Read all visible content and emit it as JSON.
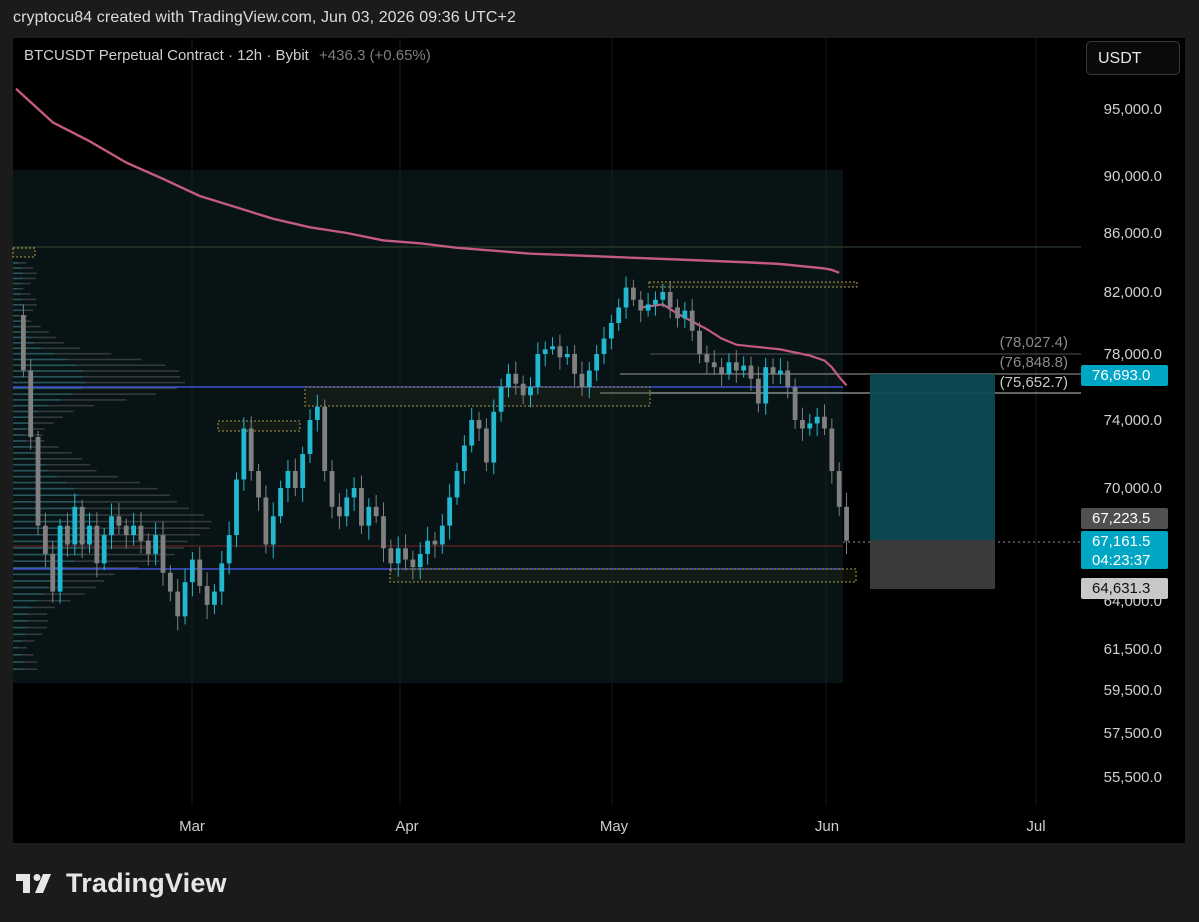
{
  "header": {
    "attribution": "cryptocu84 created with TradingView.com, Jun 03, 2026 09:36 UTC+2"
  },
  "legend": {
    "symbol": "BTCUSDT Perpetual Contract · 12h · Bybit",
    "change": "+436.3 (+0.65%)"
  },
  "currency_button": "USDT",
  "branding": {
    "logo_text": "TradingView"
  },
  "colors": {
    "background": "#000000",
    "up": "#22b8cf",
    "down": "#808080",
    "ma": "#c45a82",
    "accent": "#00a7c4",
    "blue_line": "#4b5cff"
  },
  "chart_data": {
    "type": "candlestick",
    "price_axis": {
      "ticks": [
        "95,000.0",
        "90,000.0",
        "86,000.0",
        "82,000.0",
        "78,000.0",
        "74,000.0",
        "70,000.0",
        "64,000.0",
        "61,500.0",
        "59,500.0",
        "57,500.0",
        "55,500.0"
      ]
    },
    "time_axis": {
      "ticks": [
        "Mar",
        "Apr",
        "May",
        "Jun",
        "Jul"
      ]
    },
    "horizontal_lines": {
      "dim_labels": [
        "(78,027.4)",
        "(76,848.8)",
        "(75,652.7)"
      ]
    },
    "price_labels": {
      "target": "76,693.0",
      "prev": "67,223.5",
      "last": "67,161.5",
      "countdown": "04:23:37",
      "stop": "64,631.3"
    },
    "path_points": [
      [
        0,
        80.5
      ],
      [
        1,
        77
      ],
      [
        2,
        73
      ],
      [
        3,
        68
      ],
      [
        4,
        66.5
      ],
      [
        5,
        64.5
      ],
      [
        6,
        68
      ],
      [
        7,
        67
      ],
      [
        8,
        69
      ],
      [
        9,
        67
      ],
      [
        10,
        68
      ],
      [
        11,
        66
      ],
      [
        12,
        67.5
      ],
      [
        13,
        68.5
      ],
      [
        14,
        68
      ],
      [
        15,
        67.5
      ],
      [
        16,
        68
      ],
      [
        17,
        67.2
      ],
      [
        18,
        66.5
      ],
      [
        19,
        67.5
      ],
      [
        20,
        65.5
      ],
      [
        21,
        64.5
      ],
      [
        22,
        63.2
      ],
      [
        23,
        65
      ],
      [
        24,
        66.2
      ],
      [
        25,
        64.8
      ],
      [
        26,
        63.8
      ],
      [
        27,
        64.5
      ],
      [
        28,
        66
      ],
      [
        29,
        67.5
      ],
      [
        30,
        70.5
      ],
      [
        31,
        73.5
      ],
      [
        32,
        71
      ],
      [
        33,
        69.5
      ],
      [
        34,
        67
      ],
      [
        35,
        68.5
      ],
      [
        36,
        70
      ],
      [
        37,
        71
      ],
      [
        38,
        70
      ],
      [
        39,
        72
      ],
      [
        40,
        74
      ],
      [
        41,
        74.8
      ],
      [
        42,
        71
      ],
      [
        43,
        69
      ],
      [
        44,
        68.5
      ],
      [
        45,
        69.5
      ],
      [
        46,
        70
      ],
      [
        47,
        68
      ],
      [
        48,
        69
      ],
      [
        49,
        68.5
      ],
      [
        50,
        66.8
      ],
      [
        51,
        66
      ],
      [
        52,
        66.8
      ],
      [
        53,
        66.2
      ],
      [
        54,
        65.8
      ],
      [
        55,
        66.5
      ],
      [
        56,
        67.2
      ],
      [
        57,
        67
      ],
      [
        58,
        68
      ],
      [
        59,
        69.5
      ],
      [
        60,
        71
      ],
      [
        61,
        72.5
      ],
      [
        62,
        74
      ],
      [
        63,
        73.5
      ],
      [
        64,
        71.5
      ],
      [
        65,
        74.5
      ],
      [
        66,
        76
      ],
      [
        67,
        76.8
      ],
      [
        68,
        76.2
      ],
      [
        69,
        75.5
      ],
      [
        70,
        76
      ],
      [
        71,
        78
      ],
      [
        72,
        78.3
      ],
      [
        73,
        78.5
      ],
      [
        74,
        77.8
      ],
      [
        75,
        78
      ],
      [
        76,
        76.8
      ],
      [
        77,
        76
      ],
      [
        78,
        77
      ],
      [
        79,
        78
      ],
      [
        80,
        79
      ],
      [
        81,
        80
      ],
      [
        82,
        81
      ],
      [
        83,
        82.3
      ],
      [
        84,
        81.5
      ],
      [
        85,
        80.8
      ],
      [
        86,
        81.2
      ],
      [
        87,
        81.5
      ],
      [
        88,
        82
      ],
      [
        89,
        81
      ],
      [
        90,
        80.3
      ],
      [
        91,
        80.8
      ],
      [
        92,
        79.5
      ],
      [
        93,
        78
      ],
      [
        94,
        77.5
      ],
      [
        95,
        77.2
      ],
      [
        96,
        76.8
      ],
      [
        97,
        77.5
      ],
      [
        98,
        77
      ],
      [
        99,
        77.3
      ],
      [
        100,
        76.5
      ],
      [
        101,
        75
      ],
      [
        102,
        77.2
      ],
      [
        103,
        76.8
      ],
      [
        104,
        77
      ],
      [
        105,
        76
      ],
      [
        106,
        74
      ],
      [
        107,
        73.5
      ],
      [
        108,
        73.8
      ],
      [
        109,
        74.2
      ],
      [
        110,
        73.5
      ],
      [
        111,
        71
      ],
      [
        112,
        69
      ],
      [
        113,
        67.2
      ]
    ],
    "ma_points": [
      [
        0,
        96.5
      ],
      [
        5,
        94
      ],
      [
        10,
        92.6
      ],
      [
        15,
        91
      ],
      [
        20,
        89.8
      ],
      [
        25,
        88.6
      ],
      [
        30,
        87.8
      ],
      [
        35,
        87
      ],
      [
        40,
        86.4
      ],
      [
        45,
        86
      ],
      [
        50,
        85.5
      ],
      [
        55,
        85.3
      ],
      [
        60,
        85
      ],
      [
        65,
        84.8
      ],
      [
        70,
        84.6
      ],
      [
        75,
        84.5
      ],
      [
        80,
        84.4
      ],
      [
        85,
        84.3
      ],
      [
        90,
        84.2
      ],
      [
        95,
        84.1
      ],
      [
        100,
        84
      ],
      [
        104,
        83.9
      ],
      [
        106,
        83.8
      ],
      [
        110,
        83.6
      ],
      [
        111,
        83.5
      ],
      [
        112,
        83.3
      ]
    ],
    "ma2_points": [
      [
        85,
        81
      ],
      [
        88,
        81.2
      ],
      [
        90,
        80.6
      ],
      [
        92,
        80.1
      ],
      [
        94,
        79.6
      ],
      [
        96,
        79
      ],
      [
        98,
        78.6
      ],
      [
        100,
        78.5
      ],
      [
        102,
        78.4
      ],
      [
        104,
        78.3
      ],
      [
        106,
        78.1
      ],
      [
        108,
        77.9
      ],
      [
        110,
        77.6
      ],
      [
        111,
        77.2
      ],
      [
        112,
        76.6
      ],
      [
        113,
        76.1
      ]
    ]
  }
}
